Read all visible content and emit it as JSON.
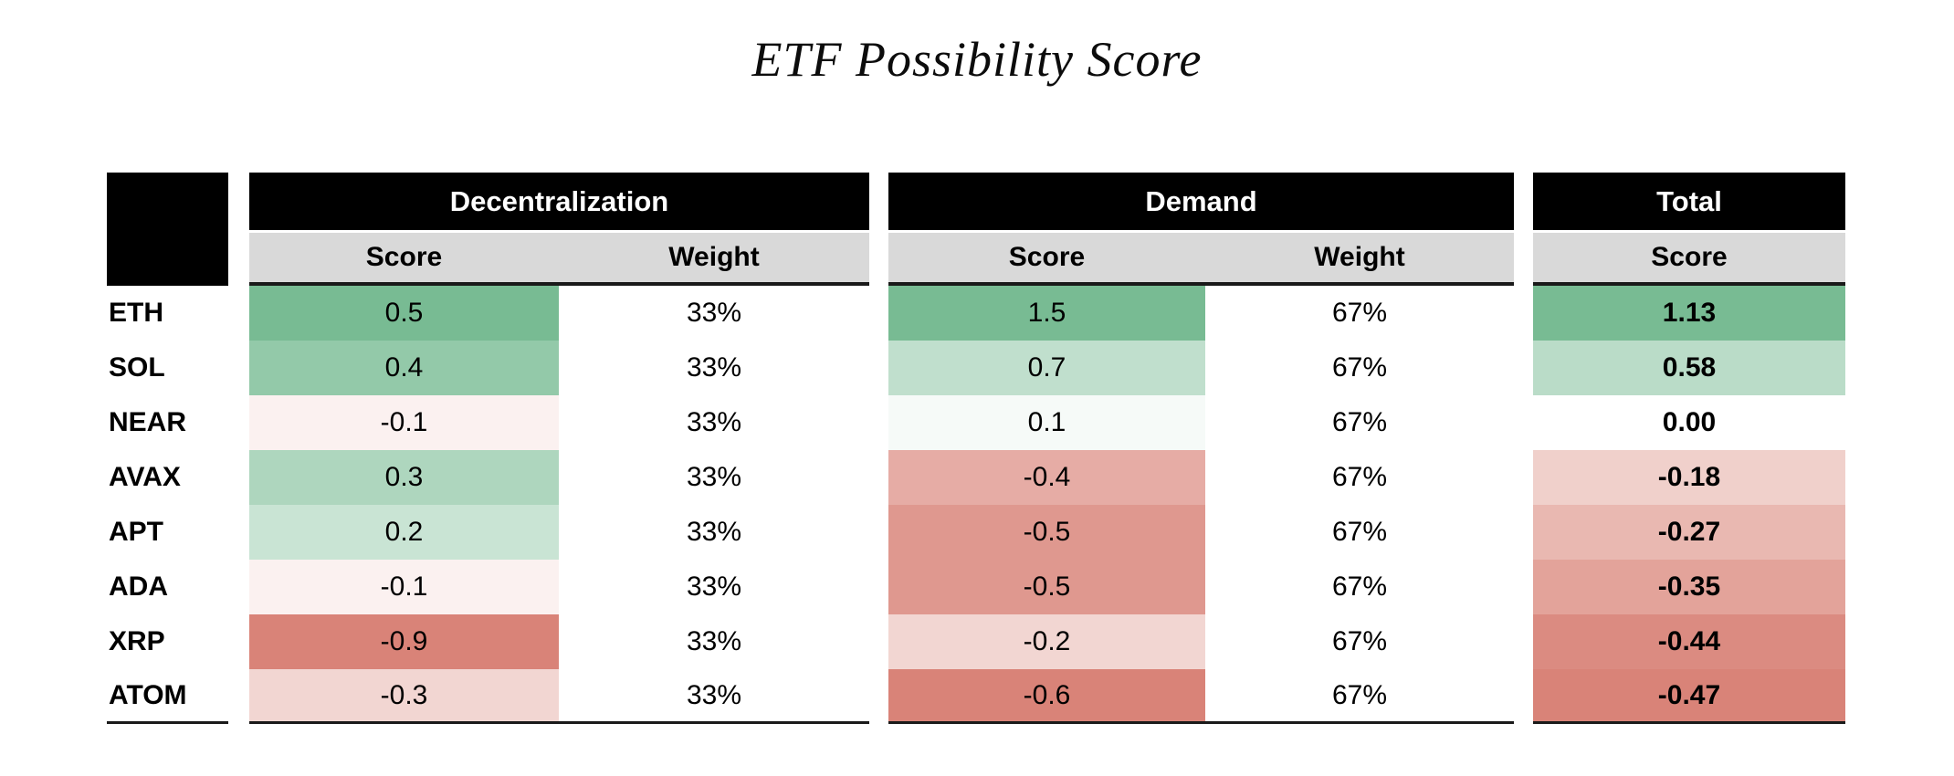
{
  "title": "ETF Possibility Score",
  "table": {
    "groups": [
      {
        "label": "Decentralization"
      },
      {
        "label": "Demand"
      },
      {
        "label": "Total"
      }
    ],
    "subheaders": {
      "score": "Score",
      "weight": "Weight"
    }
  },
  "colors": {
    "group_header_bg": "#000000",
    "group_header_text": "#FFFFFF",
    "subheader_bg": "#D9D9D9",
    "border": "#1A1A1A",
    "scale_min_red": "#D98378",
    "scale_mid_white": "#FFFFFF",
    "scale_max_green": "#78BB93"
  },
  "chart_data": {
    "type": "table",
    "title": "ETF Possibility Score",
    "column_groups": [
      {
        "label": "Decentralization",
        "subcolumns": [
          "Score",
          "Weight"
        ]
      },
      {
        "label": "Demand",
        "subcolumns": [
          "Score",
          "Weight"
        ]
      },
      {
        "label": "Total",
        "subcolumns": [
          "Score"
        ]
      }
    ],
    "color_scale": {
      "min_color": "#D98378",
      "mid_color": "#FFFFFF",
      "max_color": "#78BB93",
      "note": "diverging red-white-green heatmap, normalized per column, midpoint at 0"
    },
    "rows": [
      {
        "ticker": "ETH",
        "d_score": 0.5,
        "d_score_text": "0.5",
        "d_weight": "33%",
        "m_score": 1.5,
        "m_score_text": "1.5",
        "m_weight": "67%",
        "total": 1.13,
        "total_text": "1.13"
      },
      {
        "ticker": "SOL",
        "d_score": 0.4,
        "d_score_text": "0.4",
        "d_weight": "33%",
        "m_score": 0.7,
        "m_score_text": "0.7",
        "m_weight": "67%",
        "total": 0.58,
        "total_text": "0.58"
      },
      {
        "ticker": "NEAR",
        "d_score": -0.1,
        "d_score_text": "-0.1",
        "d_weight": "33%",
        "m_score": 0.1,
        "m_score_text": "0.1",
        "m_weight": "67%",
        "total": 0.0,
        "total_text": "0.00"
      },
      {
        "ticker": "AVAX",
        "d_score": 0.3,
        "d_score_text": "0.3",
        "d_weight": "33%",
        "m_score": -0.4,
        "m_score_text": "-0.4",
        "m_weight": "67%",
        "total": -0.18,
        "total_text": "-0.18"
      },
      {
        "ticker": "APT",
        "d_score": 0.2,
        "d_score_text": "0.2",
        "d_weight": "33%",
        "m_score": -0.5,
        "m_score_text": "-0.5",
        "m_weight": "67%",
        "total": -0.27,
        "total_text": "-0.27"
      },
      {
        "ticker": "ADA",
        "d_score": -0.1,
        "d_score_text": "-0.1",
        "d_weight": "33%",
        "m_score": -0.5,
        "m_score_text": "-0.5",
        "m_weight": "67%",
        "total": -0.35,
        "total_text": "-0.35"
      },
      {
        "ticker": "XRP",
        "d_score": -0.9,
        "d_score_text": "-0.9",
        "d_weight": "33%",
        "m_score": -0.2,
        "m_score_text": "-0.2",
        "m_weight": "67%",
        "total": -0.44,
        "total_text": "-0.44"
      },
      {
        "ticker": "ATOM",
        "d_score": -0.3,
        "d_score_text": "-0.3",
        "d_weight": "33%",
        "m_score": -0.6,
        "m_score_text": "-0.6",
        "m_weight": "67%",
        "total": -0.47,
        "total_text": "-0.47"
      }
    ]
  }
}
